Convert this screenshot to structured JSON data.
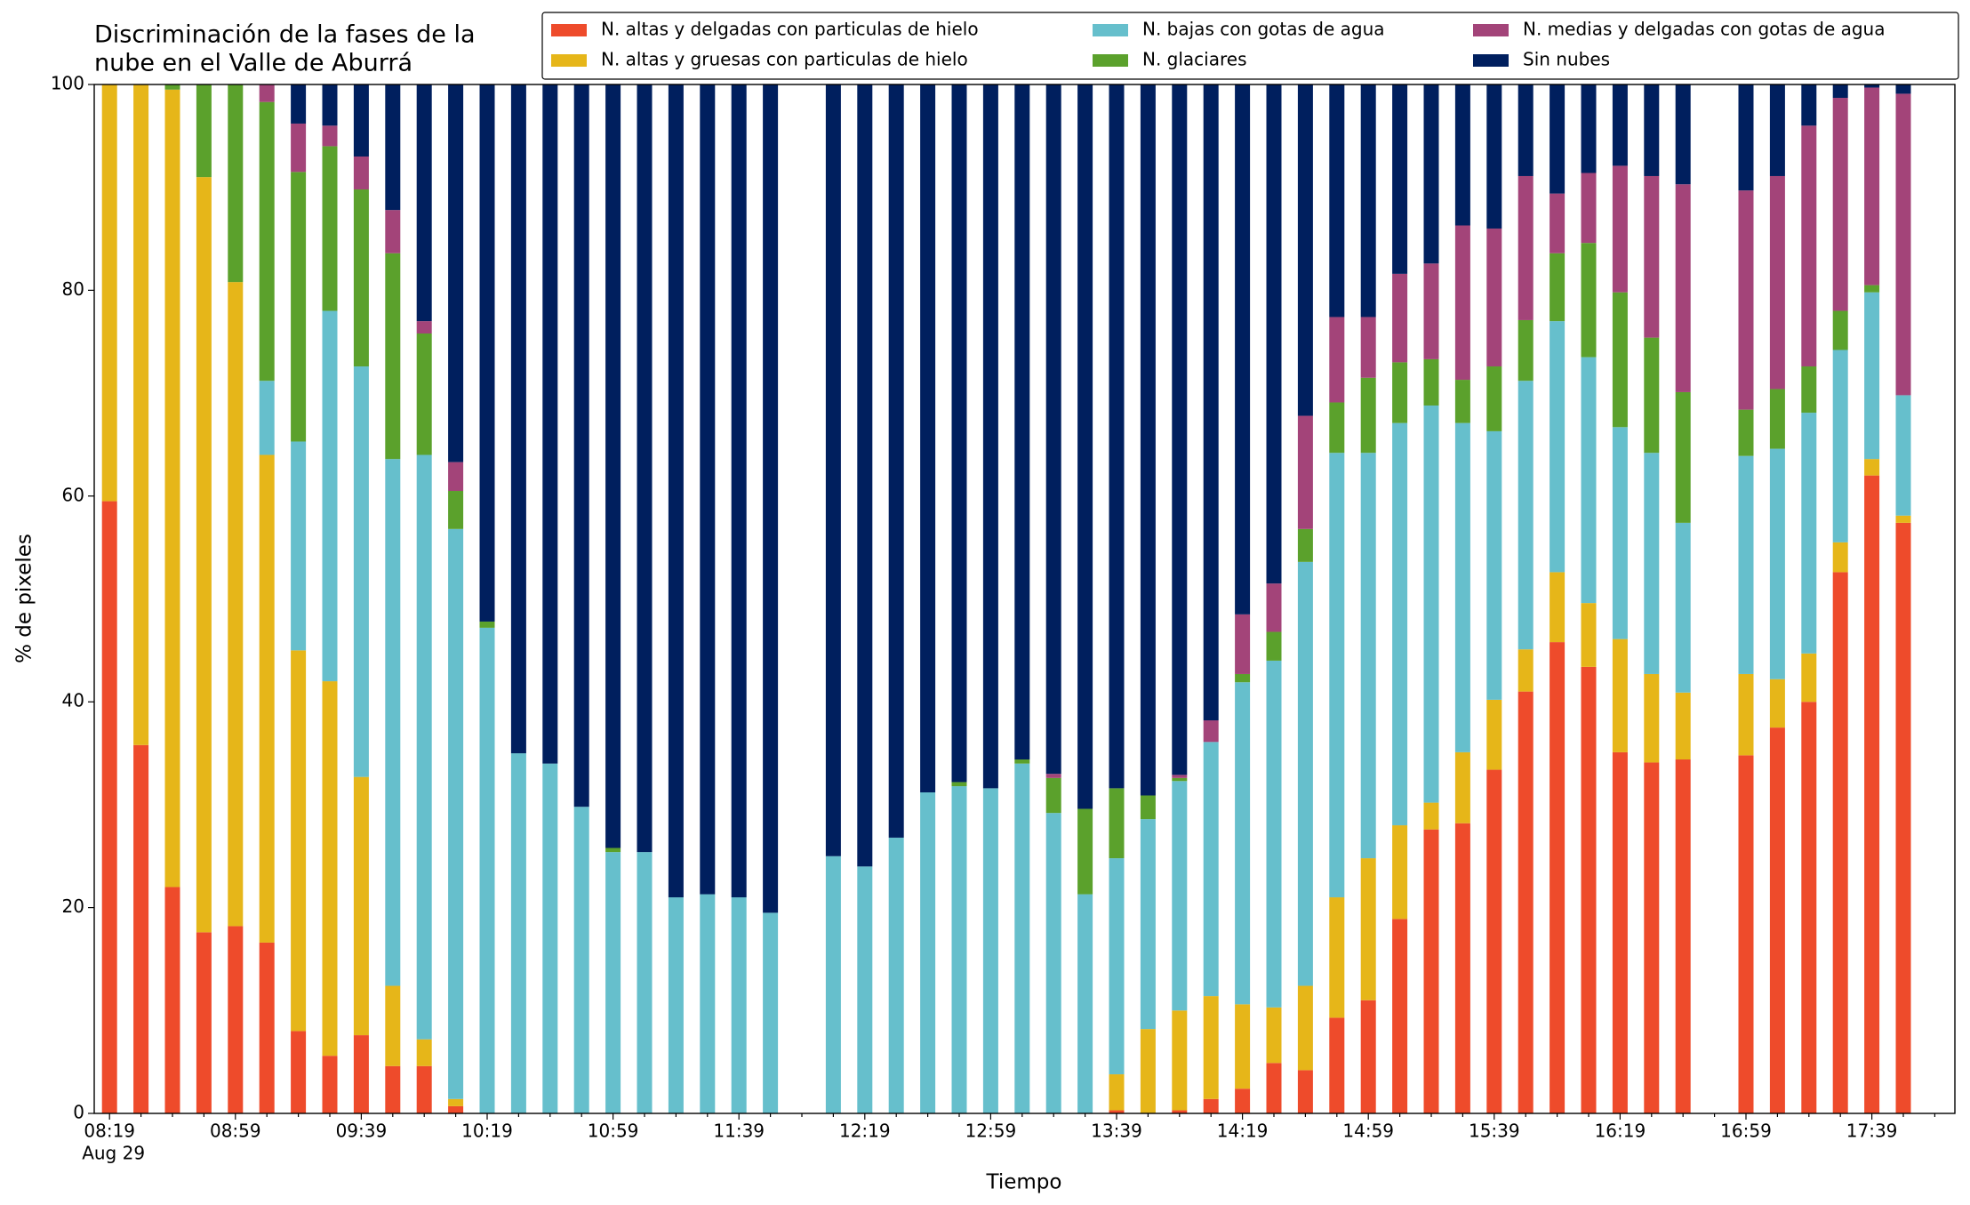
{
  "chart_data": {
    "type": "stacked-bar",
    "title": [
      "Discriminación de la fases de la",
      "nube en el Valle de Aburrá"
    ],
    "xlabel": "Tiempo",
    "ylabel": "% de pixeles",
    "x_sublabel": "Aug 29",
    "categories": [
      "08:19",
      null,
      null,
      null,
      "08:59",
      null,
      null,
      null,
      "09:39",
      null,
      null,
      null,
      "10:19",
      null,
      null,
      null,
      "10:59",
      null,
      null,
      null,
      "11:39",
      null,
      null,
      null,
      "12:19",
      null,
      null,
      null,
      "12:59",
      null,
      null,
      null,
      "13:39",
      null,
      null,
      null,
      "14:19",
      null,
      null,
      null,
      "14:59",
      null,
      null,
      null,
      "15:39",
      null,
      null,
      null,
      "16:19",
      null,
      null,
      null,
      "16:59",
      null,
      null,
      null,
      "17:39",
      null
    ],
    "ylim": [
      0,
      100
    ],
    "yticks": [
      0,
      20,
      40,
      60,
      80,
      100
    ],
    "grid": false,
    "legend": "top-right",
    "series": [
      {
        "name": "N. altas y delgadas con particulas de hielo",
        "color": "#ee4b2b",
        "values": [
          59.5,
          35.8,
          22,
          17.6,
          18.2,
          16.6,
          8,
          5.6,
          7.6,
          4.6,
          4.6,
          0.7,
          0,
          0,
          0,
          0,
          0,
          0,
          0,
          0,
          0,
          0,
          null,
          0,
          0,
          0,
          0,
          0,
          0,
          0,
          0,
          0,
          0.3,
          0,
          0.3,
          1.4,
          2.4,
          4.9,
          4.2,
          9.3,
          11,
          18.9,
          27.6,
          28.2,
          33.4,
          41,
          45.8,
          43.4,
          35.1,
          34.1,
          34.4,
          null,
          34.8,
          37.5,
          40,
          52.6,
          62,
          57.4
        ]
      },
      {
        "name": "N. altas y gruesas con particulas de hielo",
        "color": "#e6b619",
        "values": [
          40.5,
          64.2,
          77.5,
          73.4,
          62.6,
          47.4,
          37,
          36.4,
          25.1,
          7.8,
          2.6,
          0.7,
          0,
          0,
          0,
          0,
          0,
          0,
          0,
          0,
          0,
          0,
          null,
          0,
          0,
          0,
          0,
          0,
          0,
          0,
          0,
          0,
          3.5,
          8.2,
          9.7,
          10,
          8.2,
          5.4,
          8.2,
          11.7,
          13.8,
          9.1,
          2.6,
          6.9,
          6.8,
          4.1,
          6.8,
          6.2,
          11,
          8.6,
          6.5,
          null,
          7.9,
          4.7,
          4.7,
          2.9,
          1.6,
          0.7
        ]
      },
      {
        "name": "N. bajas con gotas de agua",
        "color": "#66bfcc",
        "values": [
          0,
          0,
          0,
          0,
          0,
          7.2,
          20.3,
          36,
          39.9,
          51.2,
          56.8,
          55.4,
          47.2,
          35,
          34,
          29.8,
          25.4,
          25.4,
          21,
          21.3,
          21,
          19.5,
          null,
          25,
          24,
          26.8,
          31.2,
          31.8,
          31.6,
          34,
          29.2,
          21.3,
          21,
          20.4,
          22.3,
          24.7,
          31.3,
          33.7,
          41.2,
          43.2,
          39.4,
          39.1,
          38.6,
          32,
          26.1,
          26.1,
          24.4,
          23.9,
          20.6,
          21.5,
          16.5,
          null,
          21.2,
          22.4,
          23.4,
          18.7,
          16.2,
          11.7
        ]
      },
      {
        "name": "N. glaciares",
        "color": "#5ba12c",
        "values": [
          0,
          0,
          0.5,
          9,
          19.2,
          27.1,
          26.2,
          16,
          17.2,
          20,
          11.8,
          3.7,
          0.6,
          0,
          0,
          0,
          0.4,
          0,
          0,
          0,
          0,
          0,
          null,
          0,
          0,
          0,
          0,
          0.4,
          0,
          0.4,
          3.4,
          8.3,
          6.8,
          2.3,
          0.3,
          0,
          0.8,
          2.8,
          3.2,
          4.9,
          7.3,
          5.9,
          4.5,
          4.2,
          6.3,
          5.9,
          6.6,
          11.1,
          13.1,
          11.2,
          12.7,
          null,
          4.5,
          5.8,
          4.5,
          3.8,
          0.7,
          0
        ]
      },
      {
        "name": "N. medias y delgadas con gotas de agua",
        "color": "#a34479",
        "values": [
          0,
          0,
          0,
          0,
          0,
          1.7,
          4.7,
          2,
          3.2,
          4.2,
          1.2,
          2.8,
          0,
          0,
          0,
          0,
          0,
          0,
          0,
          0,
          0,
          0,
          null,
          0,
          0,
          0,
          0,
          0,
          0,
          0,
          0.4,
          0,
          0,
          0,
          0.3,
          2.1,
          5.8,
          4.7,
          11,
          8.3,
          5.9,
          8.6,
          9.3,
          15,
          13.4,
          14,
          5.8,
          6.8,
          12.3,
          15.7,
          20.2,
          null,
          21.3,
          20.7,
          23.4,
          20.7,
          19.2,
          29.3
        ]
      },
      {
        "name": "Sin nubes",
        "color": "#001f5e",
        "values": [
          0,
          0,
          0,
          0,
          0,
          0,
          3.8,
          4,
          7,
          12.2,
          23,
          36.7,
          52.2,
          65,
          66,
          70.2,
          74.2,
          74.6,
          79,
          78.7,
          79,
          80.5,
          null,
          75,
          76,
          73.2,
          68.8,
          67.8,
          68.4,
          65.6,
          67,
          70.4,
          68.4,
          69.1,
          67.1,
          61.8,
          51.5,
          48.5,
          32.2,
          22.6,
          22.6,
          18.4,
          17.4,
          13.7,
          14,
          8.9,
          10.6,
          8.6,
          7.9,
          8.9,
          9.7,
          null,
          10.3,
          8.9,
          4,
          1.3,
          0.3,
          0.9
        ]
      }
    ]
  }
}
